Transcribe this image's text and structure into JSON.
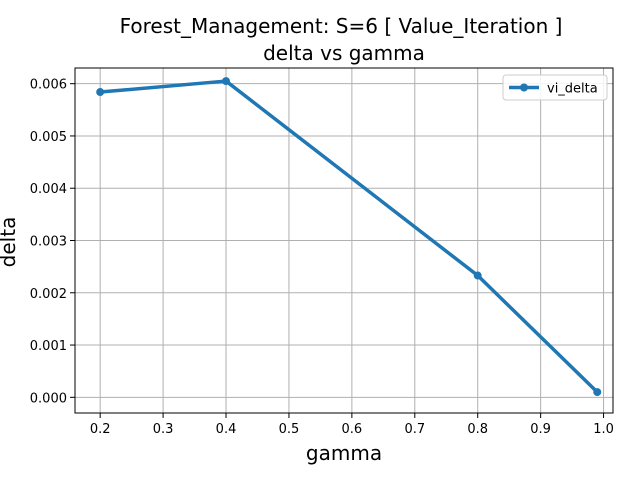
{
  "chart_data": {
    "type": "line",
    "title": "Forest_Management: S=6 [ Value_Iteration ]",
    "subtitle": "delta vs gamma",
    "xlabel": "gamma",
    "ylabel": "delta",
    "xlim": [
      0.16,
      1.015
    ],
    "ylim": [
      -0.0003,
      0.0063
    ],
    "xticks": [
      0.2,
      0.3,
      0.4,
      0.5,
      0.6,
      0.7,
      0.8,
      0.9,
      1.0
    ],
    "xtick_labels": [
      "0.2",
      "0.3",
      "0.4",
      "0.5",
      "0.6",
      "0.7",
      "0.8",
      "0.9",
      "1.0"
    ],
    "yticks": [
      0.0,
      0.001,
      0.002,
      0.003,
      0.004,
      0.005,
      0.006
    ],
    "ytick_labels": [
      "0.000",
      "0.001",
      "0.002",
      "0.003",
      "0.004",
      "0.005",
      "0.006"
    ],
    "grid": true,
    "legend_position": "top-right",
    "series": [
      {
        "name": "vi_delta",
        "color": "#1f77b4",
        "x": [
          0.2,
          0.4,
          0.8,
          0.99
        ],
        "y": [
          0.00584,
          0.00605,
          0.00233,
          0.0001
        ]
      }
    ]
  }
}
